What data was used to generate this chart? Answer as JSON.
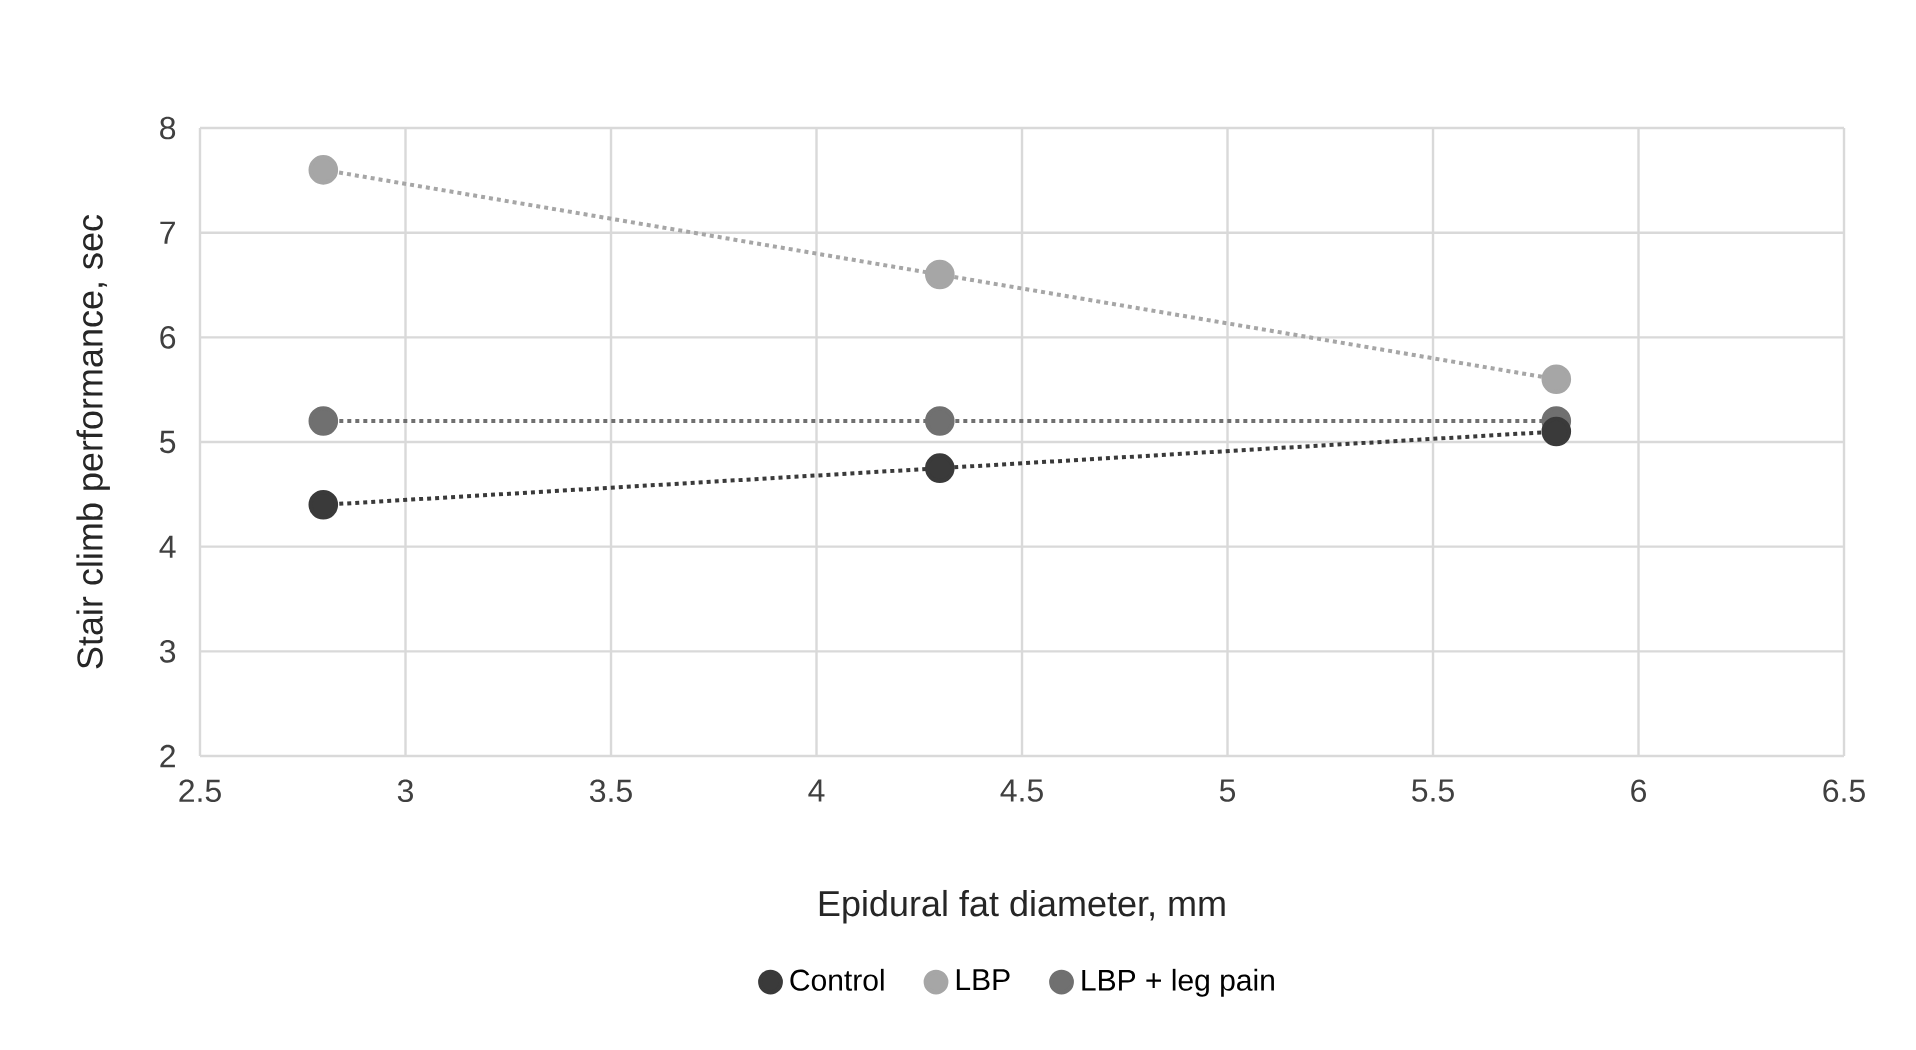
{
  "chart_data": {
    "type": "line",
    "xlabel": "Epidural fat diameter, mm",
    "ylabel": "Stair climb performance, sec",
    "x": [
      2.8,
      4.3,
      5.8
    ],
    "series": [
      {
        "name": "Control",
        "color": "#3a3a3a",
        "values": [
          4.4,
          4.75,
          5.1
        ]
      },
      {
        "name": "LBP",
        "color": "#a6a6a6",
        "values": [
          7.6,
          6.6,
          5.6
        ]
      },
      {
        "name": "LBP + leg pain",
        "color": "#707070",
        "values": [
          5.2,
          5.2,
          5.2
        ]
      }
    ],
    "xlim": [
      2.5,
      6.5
    ],
    "xticks": [
      2.5,
      3,
      3.5,
      4,
      4.5,
      5,
      5.5,
      6,
      6.5
    ],
    "ylim": [
      2,
      8
    ],
    "yticks": [
      2,
      3,
      4,
      5,
      6,
      7,
      8
    ],
    "grid": true,
    "legend": "bottom",
    "marker": "circle",
    "line_style": "dotted"
  }
}
